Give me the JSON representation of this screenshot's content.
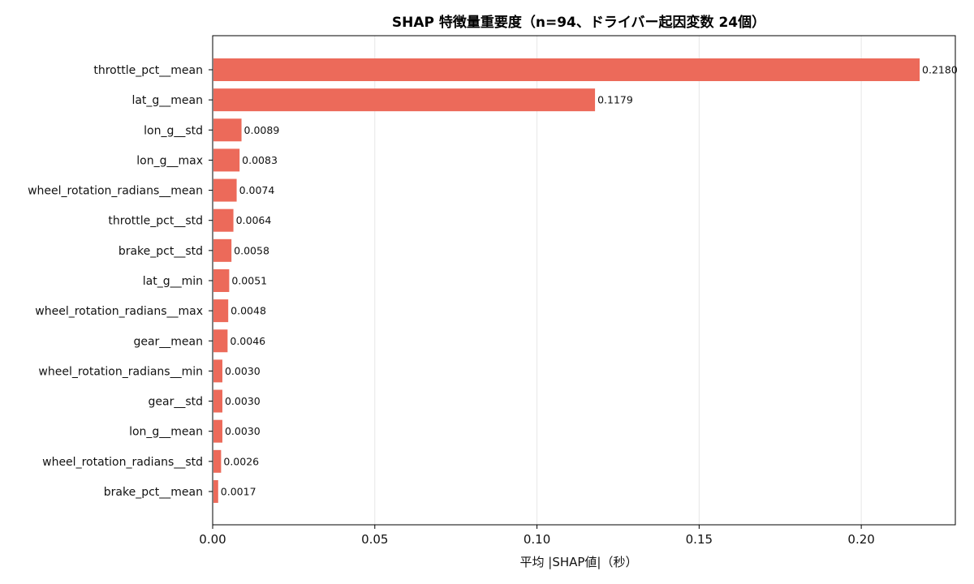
{
  "chart_data": {
    "type": "bar",
    "orientation": "horizontal",
    "title": "SHAP 特徴量重要度（n=94、ドライバー起因変数 24個）",
    "xlabel": "平均 |SHAP値|（秒）",
    "ylabel": "",
    "xlim": [
      0,
      0.229
    ],
    "xticks": [
      0.0,
      0.05,
      0.1,
      0.15,
      0.2
    ],
    "xtick_labels": [
      "0.00",
      "0.05",
      "0.10",
      "0.15",
      "0.20"
    ],
    "grid": "vertical",
    "bar_color": "#ec6a5a",
    "categories": [
      "throttle_pct__mean",
      "lat_g__mean",
      "lon_g__std",
      "lon_g__max",
      "wheel_rotation_radians__mean",
      "throttle_pct__std",
      "brake_pct__std",
      "lat_g__min",
      "wheel_rotation_radians__max",
      "gear__mean",
      "wheel_rotation_radians__min",
      "gear__std",
      "lon_g__mean",
      "wheel_rotation_radians__std",
      "brake_pct__mean"
    ],
    "values": [
      0.218,
      0.1179,
      0.0089,
      0.0083,
      0.0074,
      0.0064,
      0.0058,
      0.0051,
      0.0048,
      0.0046,
      0.003,
      0.003,
      0.003,
      0.0026,
      0.0017
    ],
    "value_labels": [
      "0.2180",
      "0.1179",
      "0.0089",
      "0.0083",
      "0.0074",
      "0.0064",
      "0.0058",
      "0.0051",
      "0.0048",
      "0.0046",
      "0.0030",
      "0.0030",
      "0.0030",
      "0.0026",
      "0.0017"
    ]
  }
}
